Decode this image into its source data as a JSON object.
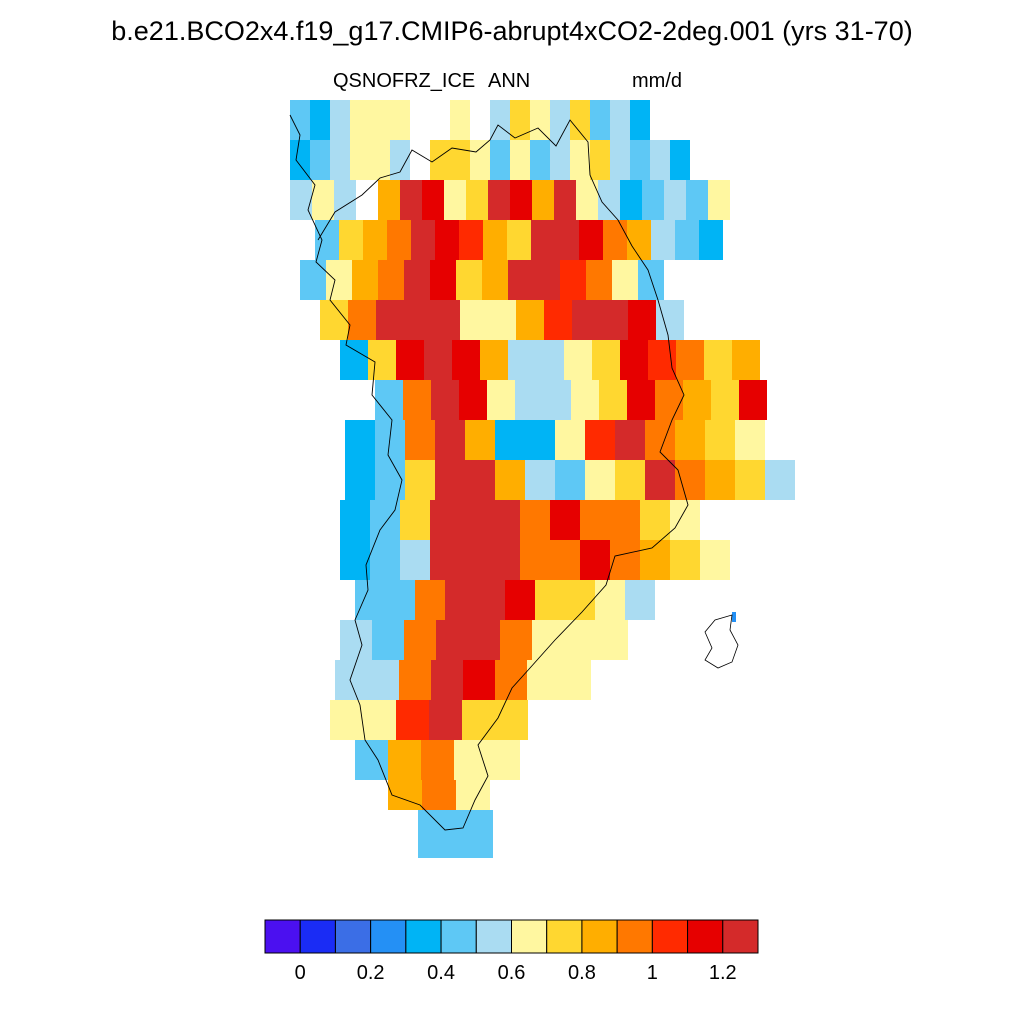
{
  "title": "b.e21.BCO2x4.f19_g17.CMIP6-abrupt4xCO2-2deg.001 (yrs 31-70)",
  "variable": "QSNOFRZ_ICE",
  "season": "ANN",
  "units": "mm/d",
  "colorbar": {
    "colors": [
      "#4b10f0",
      "#1a2cf5",
      "#3b6ee6",
      "#2490f5",
      "#00b4f5",
      "#5ec8f5",
      "#aadcf2",
      "#fff7a0",
      "#ffd730",
      "#ffae00",
      "#ff7800",
      "#ff2a00",
      "#e60000",
      "#d42a2a"
    ],
    "tick_labels": [
      "0",
      "0.2",
      "0.4",
      "0.6",
      "0.8",
      "1",
      "1.2"
    ]
  }
}
